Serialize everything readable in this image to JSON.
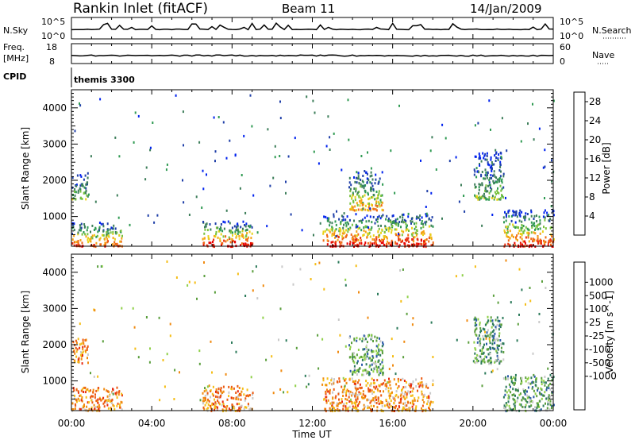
{
  "header": {
    "station": "Rankin Inlet (fitACF)",
    "beam": "Beam 11",
    "date": "14/Jan/2009"
  },
  "top_panels": {
    "nsky_label": "N.Sky",
    "nsky_ticks": [
      "10^5",
      "10^0"
    ],
    "nsearch_label": "N.Search",
    "nsearch_ticks": [
      "10^5",
      "10^0"
    ],
    "freq_label_1": "Freq.",
    "freq_label_2": "[MHz]",
    "freq_ticks": [
      "18",
      "8"
    ],
    "nave_label": "Nave",
    "nave_ticks": [
      "60",
      "0"
    ],
    "cpid_label": "CPID",
    "cpid_value": "themis 3300"
  },
  "x_axis": {
    "label": "Time UT",
    "ticks": [
      "00:00",
      "04:00",
      "08:00",
      "12:00",
      "16:00",
      "20:00",
      "00:00"
    ]
  },
  "colors": {
    "power_scale": [
      "#0022ee",
      "#1f3fa8",
      "#3d7e5a",
      "#2f9a52",
      "#79c23e",
      "#e8d21a",
      "#f5a214",
      "#ef6a12",
      "#e83010",
      "#e80000"
    ],
    "velocity_scale": [
      "#1a3fb3",
      "#2a5aa8",
      "#2b7a5a",
      "#5a9e3c",
      "#8fd048",
      "#c9c9c9",
      "#f5bd15",
      "#f08a10",
      "#ec5a10",
      "#e82a10",
      "#e00000"
    ]
  },
  "chart_data": [
    {
      "type": "heatmap",
      "title": "Power",
      "xlabel": "Time UT",
      "ylabel": "Slant Range [km]",
      "xlim": [
        "00:00",
        "24:00"
      ],
      "ylim": [
        180,
        4500
      ],
      "y_ticks": [
        1000,
        2000,
        3000,
        4000
      ],
      "colorbar_label": "Power [dB]",
      "colorbar_ticks": [
        4,
        8,
        12,
        16,
        20,
        24,
        28
      ],
      "colorbar_range": [
        0,
        30
      ],
      "features": [
        {
          "t_start": 0.0,
          "t_end": 2.5,
          "range_min": 200,
          "range_max": 850,
          "peak_db": 28
        },
        {
          "t_start": 0.0,
          "t_end": 0.8,
          "range_min": 1500,
          "range_max": 2200,
          "peak_db": 14
        },
        {
          "t_start": 6.5,
          "t_end": 9.0,
          "range_min": 200,
          "range_max": 900,
          "peak_db": 30
        },
        {
          "t_start": 12.5,
          "t_end": 18.0,
          "range_min": 200,
          "range_max": 1100,
          "peak_db": 30
        },
        {
          "t_start": 13.8,
          "t_end": 15.5,
          "range_min": 1200,
          "range_max": 2300,
          "peak_db": 20
        },
        {
          "t_start": 20.0,
          "t_end": 21.5,
          "range_min": 1500,
          "range_max": 2800,
          "peak_db": 12
        },
        {
          "t_start": 21.5,
          "t_end": 24.0,
          "range_min": 200,
          "range_max": 1200,
          "peak_db": 28
        }
      ]
    },
    {
      "type": "heatmap",
      "title": "Velocity",
      "xlabel": "Time UT",
      "ylabel": "Slant Range [km]",
      "xlim": [
        "00:00",
        "24:00"
      ],
      "ylim": [
        180,
        4500
      ],
      "y_ticks": [
        1000,
        2000,
        3000,
        4000
      ],
      "colorbar_label": "Velocity [m s^-1]",
      "colorbar_ticks": [
        1000,
        500,
        100,
        25,
        -25,
        -100,
        -500,
        -1000
      ],
      "features": [
        {
          "t_start": 0.0,
          "t_end": 2.5,
          "range_min": 200,
          "range_max": 850,
          "velocity": -100
        },
        {
          "t_start": 0.0,
          "t_end": 0.8,
          "range_min": 1500,
          "range_max": 2200,
          "velocity": -300
        },
        {
          "t_start": 6.5,
          "t_end": 9.0,
          "range_min": 200,
          "range_max": 900,
          "velocity": -100
        },
        {
          "t_start": 12.5,
          "t_end": 18.0,
          "range_min": 200,
          "range_max": 1100,
          "velocity": -300
        },
        {
          "t_start": 13.8,
          "t_end": 15.5,
          "range_min": 1200,
          "range_max": 2300,
          "velocity": 100
        },
        {
          "t_start": 20.0,
          "t_end": 21.5,
          "range_min": 1500,
          "range_max": 2800,
          "velocity": 100
        },
        {
          "t_start": 21.5,
          "t_end": 24.0,
          "range_min": 200,
          "range_max": 1200,
          "velocity": 100
        }
      ]
    }
  ]
}
